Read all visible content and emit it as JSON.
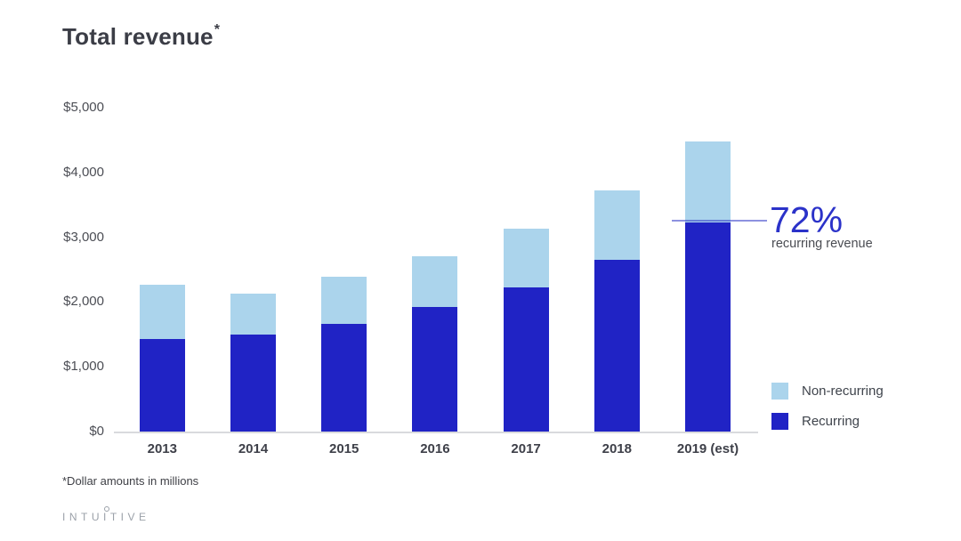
{
  "slide": {
    "title": "Total revenue",
    "title_superscript": "*",
    "footnote": "*Dollar amounts in millions",
    "logo": {
      "prefix": "INTU",
      "ring_letter": "I",
      "suffix": "TIVE"
    }
  },
  "colors": {
    "recurring": "#2023c5",
    "non_recurring": "#abd4ec",
    "annotation_blue": "#2b32c9",
    "axis_line": "#d9dadd",
    "title_text": "#3b3d46",
    "tick_text": "#4c4e55"
  },
  "chart_data": {
    "type": "bar",
    "stacked": true,
    "title": "Total revenue*",
    "categories": [
      "2013",
      "2014",
      "2015",
      "2016",
      "2017",
      "2018",
      "2019 (est)"
    ],
    "series": [
      {
        "name": "Recurring",
        "color": "#2023c5",
        "values": [
          1435,
          1495,
          1665,
          1920,
          2225,
          2645,
          3225
        ]
      },
      {
        "name": "Non-recurring",
        "color": "#abd4ec",
        "values": [
          830,
          635,
          720,
          785,
          905,
          1080,
          1255
        ]
      }
    ],
    "totals": [
      2265,
      2130,
      2385,
      2705,
      3130,
      3725,
      4480
    ],
    "xlabel": "",
    "ylabel": "",
    "units": "US dollars, millions",
    "ylim": [
      0,
      5000
    ],
    "grid": false,
    "legend_position": "right-bottom",
    "y_ticks": [
      {
        "value": 0,
        "label": "$0"
      },
      {
        "value": 1000,
        "label": "$1,000"
      },
      {
        "value": 2000,
        "label": "$2,000"
      },
      {
        "value": 3000,
        "label": "$3,000"
      },
      {
        "value": 4000,
        "label": "$4,000"
      },
      {
        "value": 5000,
        "label": "$5,000"
      }
    ],
    "annotation": {
      "text": "72%",
      "caption": "recurring revenue",
      "series": "Recurring",
      "category": "2019 (est)",
      "value": 3225
    }
  }
}
